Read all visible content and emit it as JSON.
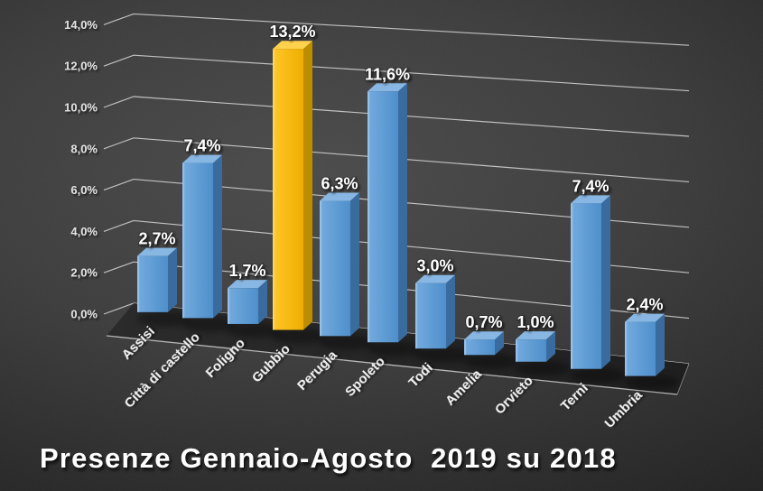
{
  "chart_data": {
    "type": "bar",
    "style": "3d-column",
    "title": "Presenze Gennaio-Agosto  2019 su 2018",
    "categories": [
      "Assisi",
      "Città di castello",
      "Foligno",
      "Gubbio",
      "Perugia",
      "Spoleto",
      "Todi",
      "Amelia",
      "Orvieto",
      "Terni",
      "Umbria"
    ],
    "values": [
      2.7,
      7.4,
      1.7,
      13.2,
      6.3,
      11.6,
      3.0,
      0.7,
      1.0,
      7.4,
      2.4
    ],
    "value_labels": [
      "2,7%",
      "7,4%",
      "1,7%",
      "13,2%",
      "6,3%",
      "11,6%",
      "3,0%",
      "0,7%",
      "1,0%",
      "7,4%",
      "2,4%"
    ],
    "highlight_index": 3,
    "highlight_category": "Gubbio",
    "xlabel": "",
    "ylabel": "",
    "ylim": [
      0,
      14
    ],
    "ytick_step": 2,
    "ytick_labels": [
      "0,0%",
      "2,0%",
      "4,0%",
      "6,0%",
      "8,0%",
      "10,0%",
      "12,0%",
      "14,0%"
    ],
    "grid": true,
    "legend": false,
    "colors": {
      "bar_front_light": "#74ABDF",
      "bar_front_dark": "#4E8FCB",
      "bar_side": "#3A6B9E",
      "bar_top": "#89B7E3",
      "highlight_front_light": "#FFC72A",
      "highlight_front_dark": "#EFAE00",
      "highlight_side": "#BD8D00",
      "highlight_top": "#FFD24D",
      "gridline": "#CCCCCC",
      "floor": "#252525",
      "floor_edge": "#BDBDBD",
      "axis_text": "#E2E2E2",
      "label_text": "#FFFFFF",
      "background_center": "#4B4B4B",
      "background_edge": "#191919",
      "title_text": "#FFFFFF"
    }
  }
}
